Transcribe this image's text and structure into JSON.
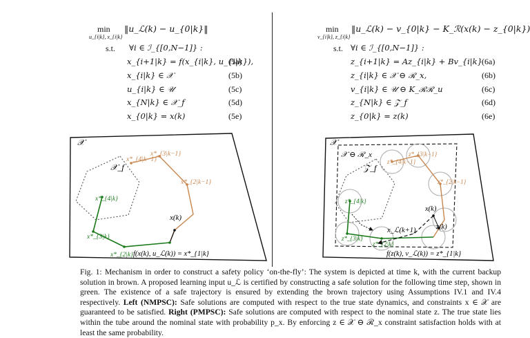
{
  "left_problem": {
    "min_label": "min",
    "min_sub": "u_{i|k}, x_{i|k}",
    "objective": "‖u_ℒ(k) − u_{0|k}‖",
    "st_label": "s.t.",
    "forall": "∀i ∈ ℐ_{[0,N−1]} :",
    "constraints": [
      {
        "expr": "x_{i+1|k} = f(x_{i|k}, u_{i|k}),",
        "num": "(5a)"
      },
      {
        "expr": "x_{i|k} ∈ 𝒳",
        "num": "(5b)"
      },
      {
        "expr": "u_{i|k} ∈ 𝒰",
        "num": "(5c)"
      },
      {
        "expr": "x_{N|k} ∈ 𝒳_f",
        "num": "(5d)"
      },
      {
        "expr": "x_{0|k} = x(k)",
        "num": "(5e)"
      }
    ]
  },
  "right_problem": {
    "min_label": "min",
    "min_sub": "v_{i|k}, z_{i|k}",
    "objective": "‖u_ℒ(k) − v_{0|k} − K_ℛ(x(k) − z_{0|k})‖",
    "st_label": "s.t.",
    "forall": "∀i ∈ ℐ_{[0,N−1]} :",
    "constraints": [
      {
        "expr": "z_{i+1|k} = Az_{i|k} + Bv_{i|k}",
        "num": "(6a)"
      },
      {
        "expr": "z_{i|k} ∈ 𝒳 ⊖ ℛ_x,",
        "num": "(6b)"
      },
      {
        "expr": "v_{i|k} ∈ 𝒰 ⊖ K_ℛℛ_u",
        "num": "(6c)"
      },
      {
        "expr": "z_{N|k} ∈ 𝒵_f",
        "num": "(6d)"
      },
      {
        "expr": "z_{0|k} = z(k)",
        "num": "(6e)"
      }
    ]
  },
  "left_figure": {
    "region_label": "𝒳",
    "terminal_label": "𝒳_f",
    "state_label": "x(k)",
    "brown_labels": [
      "x*_{4|k−1}",
      "x*_{3|k−1}",
      "x*_{2|k−1}"
    ],
    "green_labels": [
      "x*_{4|k}",
      "x*_{3|k}",
      "x*_{2|k}"
    ],
    "next_label": "f(x(k), u_ℒ(k)) = x*_{1|k}"
  },
  "right_figure": {
    "region_label": "𝒳",
    "tightened_label": "𝒳 ⊖ ℛ_x",
    "terminal_label": "𝒵_f",
    "state_label": "x(k)",
    "nominal_label": "z(k)",
    "next_true_label": "x_ℒ(k+1)",
    "brown_labels": [
      "z*_{4|k−1}",
      "z*_{3|k−1}",
      "z*_{2|k−1}"
    ],
    "green_labels": [
      "z*_{4|k}",
      "z*_{3|k}",
      "z*_{2|k}"
    ],
    "next_label": "f(z(k), v_ℒ(k)) = z*_{1|k}"
  },
  "caption": {
    "lead": "Fig. 1: Mechanism in order to construct a safety policy ‘on-the-fly’: The system is depicted at time k, with the current backup solution in brown. A proposed learning input u_ℒ is certified by constructing a safe solution for the following time step, shown in green. The existence of a safe trajectory is ensured by extending the brown trajectory using Assumptions IV.1 and IV.4 respectively.",
    "left_title": "Left (NMPSC):",
    "left_text": "Safe solutions are computed with respect to the true state dynamics, and constraints x ∈ 𝒳 are guaranteed to be satisfied.",
    "right_title": "Right (PMPSC):",
    "right_text": "Safe solutions are computed with respect to the nominal state z. The true state lies within the tube around the nominal state with probability p_x. By enforcing z ∈ 𝒳 ⊖ ℛ_x constraint satisfaction holds with at least the same probability."
  },
  "colors": {
    "brown": "#c8864e",
    "green": "#1a7a1a",
    "ink": "#111111"
  }
}
